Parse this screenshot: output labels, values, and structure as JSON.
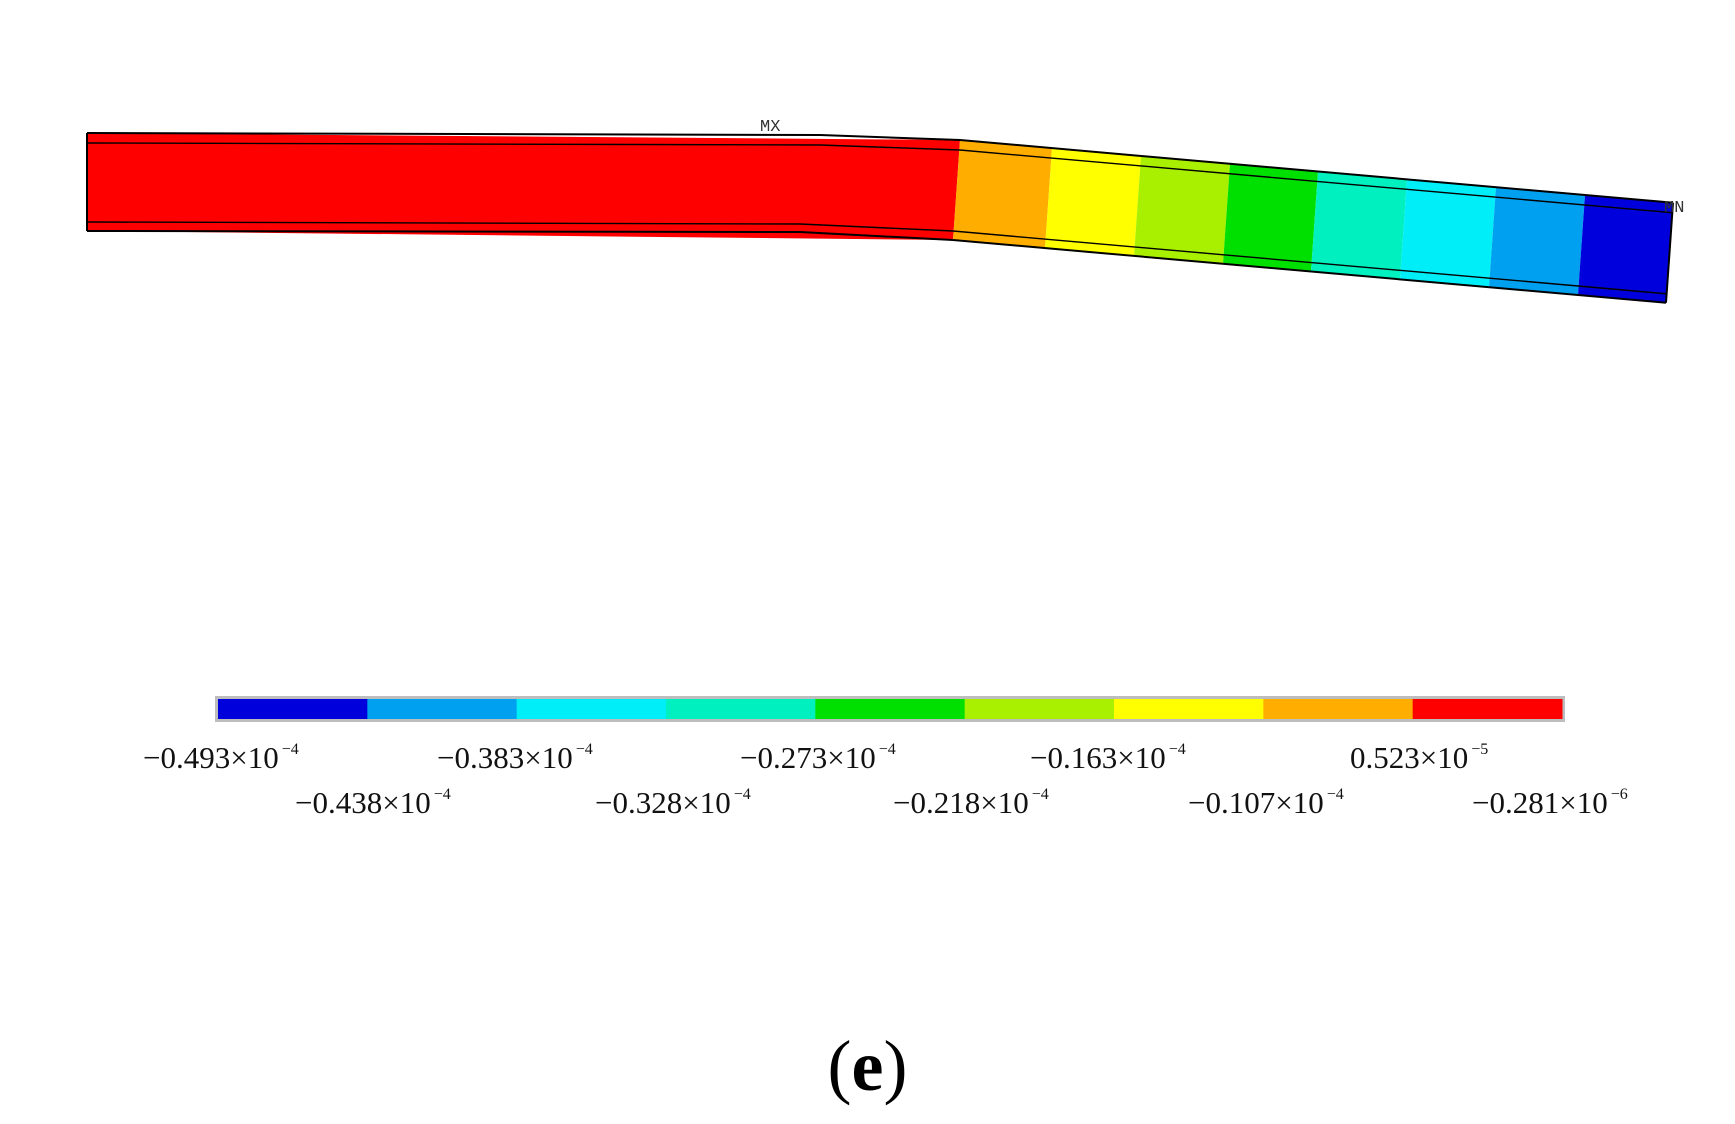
{
  "markers": {
    "max": "MX",
    "min": "MN"
  },
  "contour_colors": [
    "#0000dd",
    "#00a0f0",
    "#00eef8",
    "#00f0c0",
    "#00e000",
    "#a8f000",
    "#ffff00",
    "#ffae00",
    "#ff0000"
  ],
  "legend": {
    "top_row": [
      {
        "mantissa": "−0.493×10",
        "exp": "−4"
      },
      {
        "mantissa": "−0.383×10",
        "exp": "−4"
      },
      {
        "mantissa": "−0.273×10",
        "exp": "−4"
      },
      {
        "mantissa": "−0.163×10",
        "exp": "−4"
      },
      {
        "mantissa": "0.523×10",
        "exp": "−5"
      }
    ],
    "bottom_row": [
      {
        "mantissa": "−0.438×10",
        "exp": "−4"
      },
      {
        "mantissa": "−0.328×10",
        "exp": "−4"
      },
      {
        "mantissa": "−0.218×10",
        "exp": "−4"
      },
      {
        "mantissa": "−0.107×10",
        "exp": "−4"
      },
      {
        "mantissa": "−0.281×10",
        "exp": "−6"
      }
    ]
  },
  "caption": {
    "open": "(",
    "letter": "e",
    "close": ")"
  }
}
